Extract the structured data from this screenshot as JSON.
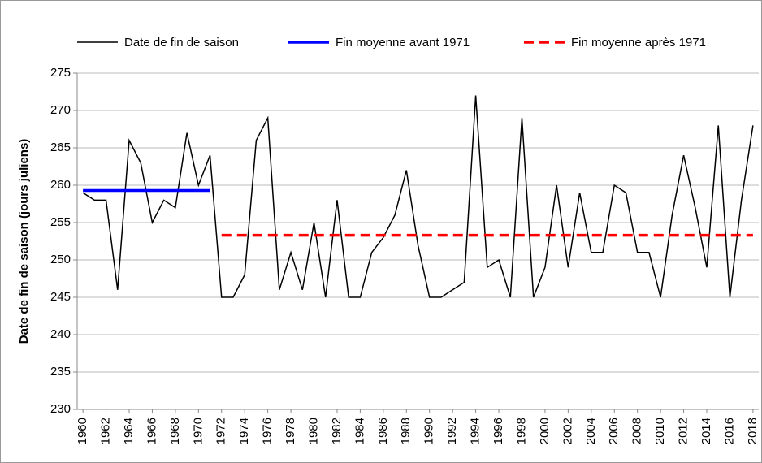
{
  "chart_data": {
    "type": "line",
    "y_label": "Date de fin de saison (jours juliens)",
    "x": [
      1960,
      1961,
      1962,
      1963,
      1964,
      1965,
      1966,
      1967,
      1968,
      1969,
      1970,
      1971,
      1972,
      1973,
      1974,
      1975,
      1976,
      1977,
      1978,
      1979,
      1980,
      1981,
      1982,
      1983,
      1984,
      1985,
      1986,
      1987,
      1988,
      1989,
      1990,
      1991,
      1992,
      1993,
      1994,
      1995,
      1996,
      1997,
      1998,
      1999,
      2000,
      2001,
      2002,
      2003,
      2004,
      2005,
      2006,
      2007,
      2008,
      2009,
      2010,
      2011,
      2012,
      2013,
      2014,
      2015,
      2016,
      2017,
      2018
    ],
    "series": [
      {
        "name": "Date de fin de saison",
        "color": "#000000",
        "style": "solid",
        "width": 1.5,
        "values": [
          259,
          258,
          258,
          246,
          266,
          263,
          255,
          258,
          257,
          267,
          260,
          264,
          245,
          245,
          248,
          266,
          269,
          246,
          251,
          246,
          255,
          245,
          258,
          245,
          245,
          251,
          253,
          256,
          262,
          252,
          245,
          245,
          246,
          247,
          272,
          249,
          250,
          245,
          269,
          245,
          249,
          260,
          249,
          259,
          251,
          251,
          260,
          259,
          251,
          251,
          245,
          256,
          264,
          257,
          249,
          268,
          245,
          258,
          268
        ]
      },
      {
        "name": "Fin moyenne avant 1971",
        "color": "#0000ff",
        "style": "solid",
        "width": 3.5,
        "x": [
          1960,
          1971
        ],
        "values": [
          259.3,
          259.3
        ]
      },
      {
        "name": "Fin moyenne après 1971",
        "color": "#ff0000",
        "style": "dashed",
        "width": 3.5,
        "x": [
          1972,
          2018
        ],
        "values": [
          253.3,
          253.3
        ]
      }
    ],
    "xlim": [
      1959.5,
      2018.5
    ],
    "xticks": [
      1960,
      1962,
      1964,
      1966,
      1968,
      1970,
      1972,
      1974,
      1976,
      1978,
      1980,
      1982,
      1984,
      1986,
      1988,
      1990,
      1992,
      1994,
      1996,
      1998,
      2000,
      2002,
      2004,
      2006,
      2008,
      2010,
      2012,
      2014,
      2016,
      2018
    ],
    "ylim": [
      230,
      275
    ],
    "yticks": [
      230,
      235,
      240,
      245,
      250,
      255,
      260,
      265,
      270,
      275
    ],
    "grid": true,
    "legend": "top"
  }
}
